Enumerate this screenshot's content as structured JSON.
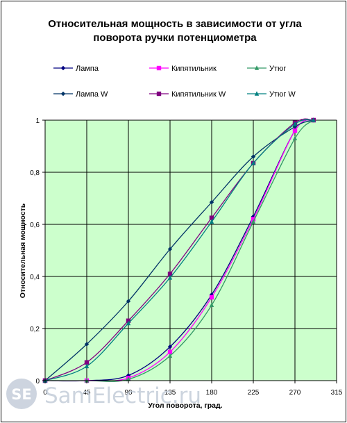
{
  "chart_data": {
    "type": "line",
    "title_line1": "Относительная мощность в зависимости от угла",
    "title_line2": "поворота ручки потенциометра",
    "xlabel": "Угол поворота, град.",
    "ylabel": "Относительная мощность",
    "xlim": [
      0,
      315
    ],
    "ylim": [
      0,
      1
    ],
    "x_ticks": [
      0,
      45,
      90,
      135,
      180,
      225,
      270,
      315
    ],
    "y_ticks": [
      0,
      0.2,
      0.4,
      0.6,
      0.8,
      1
    ],
    "x_tick_labels": [
      "0",
      "45",
      "90",
      "135",
      "180",
      "225",
      "270",
      "315"
    ],
    "y_tick_labels": [
      "0",
      "0,2",
      "0,4",
      "0,6",
      "0,8",
      "1"
    ],
    "grid": true,
    "plot_background": "#ccffcc",
    "legend_position": "top",
    "x": [
      0,
      45,
      90,
      135,
      180,
      225,
      270,
      290
    ],
    "series": [
      {
        "name": "Лампа",
        "color": "#000080",
        "marker": "diamond",
        "values": [
          0,
          0,
          0.02,
          0.13,
          0.33,
          0.63,
          0.96,
          1
        ]
      },
      {
        "name": "Кипятильник",
        "color": "#ff00ff",
        "marker": "square",
        "values": [
          0,
          0,
          0.01,
          0.11,
          0.32,
          0.62,
          0.96,
          1
        ]
      },
      {
        "name": "Утюг",
        "color": "#339966",
        "marker": "triangle",
        "values": [
          0,
          0,
          0.005,
          0.095,
          0.29,
          0.61,
          0.93,
          1
        ]
      },
      {
        "name": "Лампа W",
        "color": "#003366",
        "marker": "diamond",
        "values": [
          0,
          0.14,
          0.305,
          0.505,
          0.685,
          0.86,
          0.975,
          1
        ]
      },
      {
        "name": "Кипятильник W",
        "color": "#800080",
        "marker": "square",
        "values": [
          0,
          0.07,
          0.23,
          0.41,
          0.625,
          0.835,
          0.99,
          1
        ]
      },
      {
        "name": "Утюг W",
        "color": "#008080",
        "marker": "triangle",
        "values": [
          0,
          0.055,
          0.22,
          0.395,
          0.61,
          0.835,
          0.985,
          1
        ]
      }
    ]
  },
  "watermark": {
    "badge": "SE",
    "text": "SamElectric.ru"
  }
}
